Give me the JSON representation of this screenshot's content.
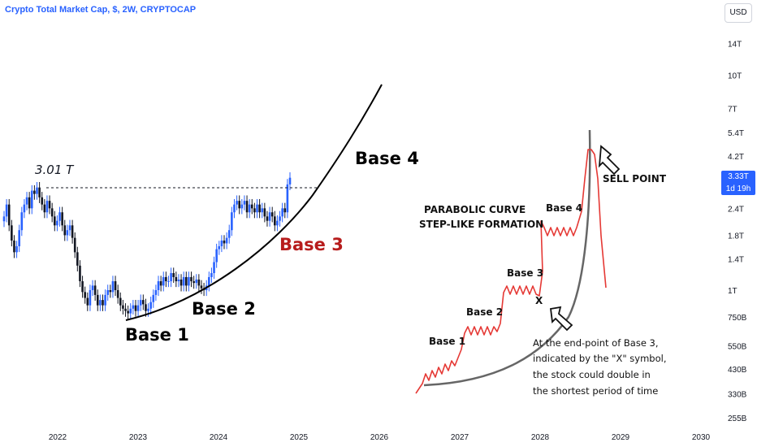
{
  "header": {
    "title": "Crypto Total Market Cap, $, 2W, CRYPTOCAP",
    "currency": "USD"
  },
  "price_tag": {
    "value": "3.33T",
    "countdown": "1d 19h"
  },
  "chart_data": {
    "type": "candlestick",
    "title": "Crypto Total Market Cap, $, 2W, CRYPTOCAP",
    "y_scale": "log",
    "y_ticks": [
      "14T",
      "10T",
      "7T",
      "5.4T",
      "4.2T",
      "3.33T",
      "2.4T",
      "1.8T",
      "1.4T",
      "1T",
      "750B",
      "550B",
      "430B",
      "330B",
      "255B"
    ],
    "x_ticks": [
      "2022",
      "2023",
      "2024",
      "2025",
      "2026",
      "2027",
      "2028",
      "2029",
      "2030"
    ],
    "colors": {
      "up": "#2962ff",
      "down": "#131722",
      "accent_red": "#b71c1c"
    },
    "previous_high": {
      "label": "3.01 T",
      "value": 3.01
    },
    "closes_T": [
      2.2,
      2.5,
      2.0,
      1.7,
      1.5,
      1.6,
      1.9,
      2.3,
      2.5,
      2.7,
      2.4,
      2.9,
      2.8,
      3.0,
      2.7,
      2.5,
      2.3,
      2.6,
      2.4,
      2.2,
      2.0,
      2.1,
      2.3,
      2.0,
      1.8,
      1.9,
      2.0,
      1.75,
      1.5,
      1.3,
      1.1,
      0.98,
      0.92,
      0.85,
      1.0,
      1.05,
      0.95,
      0.85,
      0.9,
      0.85,
      0.95,
      1.0,
      0.98,
      1.1,
      1.0,
      0.92,
      0.85,
      0.82,
      0.8,
      0.78,
      0.82,
      0.85,
      0.8,
      0.85,
      0.9,
      0.86,
      0.8,
      0.82,
      0.88,
      0.95,
      1.0,
      1.1,
      1.05,
      1.15,
      1.1,
      1.1,
      1.2,
      1.15,
      1.1,
      1.12,
      1.05,
      1.15,
      1.05,
      1.15,
      1.1,
      1.08,
      1.12,
      1.05,
      1.02,
      1.0,
      1.05,
      1.15,
      1.2,
      1.35,
      1.55,
      1.6,
      1.7,
      1.65,
      1.75,
      1.9,
      2.3,
      2.5,
      2.6,
      2.4,
      2.5,
      2.6,
      2.3,
      2.5,
      2.4,
      2.3,
      2.5,
      2.3,
      2.4,
      2.2,
      2.1,
      2.3,
      2.2,
      2.0,
      2.1,
      2.2,
      2.4,
      2.3,
      3.1,
      3.33
    ],
    "annotations": [
      "Base 1",
      "Base 2",
      "Base 3",
      "Base 4"
    ],
    "inset": {
      "title_line1": "PARABOLIC CURVE",
      "title_line2": "STEP-LIKE FORMATION",
      "bases": [
        "Base 1",
        "Base 2",
        "Base 3",
        "Base 4"
      ],
      "sell_point": "SELL POINT",
      "x_marker": "X",
      "note": [
        "At the end-point of Base 3,",
        "indicated by the \"X\" symbol,",
        "the stock could double in",
        "the shortest period of time"
      ]
    }
  }
}
